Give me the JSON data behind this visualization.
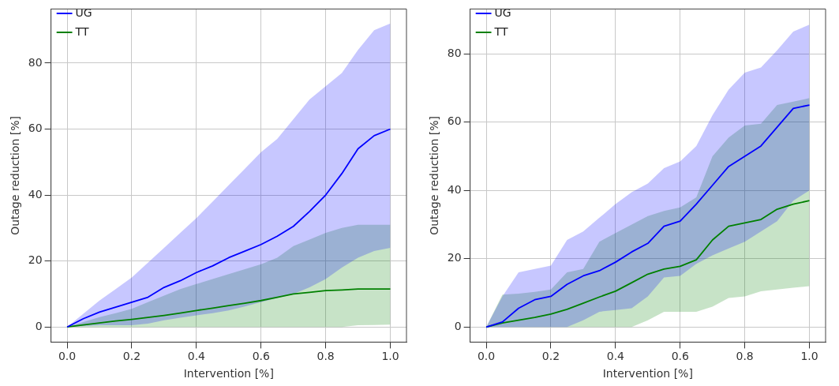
{
  "chart_data": [
    {
      "type": "line",
      "xlabel": "Intervention [%]",
      "ylabel": "Outage reduction [%]",
      "x": [
        0,
        0.05,
        0.1,
        0.15,
        0.2,
        0.25,
        0.3,
        0.35,
        0.4,
        0.45,
        0.5,
        0.55,
        0.6,
        0.65,
        0.7,
        0.75,
        0.8,
        0.85,
        0.9,
        0.95,
        1.0
      ],
      "series": [
        {
          "name": "UG",
          "color": "#0000ff",
          "values": [
            0,
            2.5,
            4.5,
            6,
            7.5,
            9,
            12,
            14,
            16.5,
            18.5,
            21,
            23,
            25,
            27.5,
            30.5,
            35,
            40,
            46.5,
            54,
            58,
            60
          ],
          "lower": [
            0,
            0.3,
            0.5,
            0.5,
            0.5,
            1,
            2,
            2.8,
            3.5,
            4.2,
            5,
            6.2,
            7.5,
            8.8,
            10,
            12,
            14.5,
            18,
            21,
            23,
            24
          ],
          "upper": [
            0,
            4,
            8,
            11.5,
            15,
            19.5,
            24,
            28.5,
            33,
            38,
            43,
            48,
            53,
            57,
            63,
            69,
            73,
            77,
            84,
            90,
            92
          ]
        },
        {
          "name": "TT",
          "color": "#008000",
          "values": [
            0,
            0.6,
            1.2,
            1.8,
            2.3,
            2.9,
            3.5,
            4.2,
            5,
            5.7,
            6.5,
            7.2,
            8,
            9,
            10,
            10.5,
            11,
            11.2,
            11.5,
            11.5,
            11.5
          ],
          "lower": [
            0,
            0,
            0,
            0,
            0,
            0,
            0,
            0,
            0,
            0,
            0,
            0,
            0,
            0,
            0,
            0,
            0,
            0,
            0.5,
            0.6,
            0.7
          ],
          "upper": [
            0,
            1.5,
            3,
            4.2,
            5.5,
            7.5,
            9.5,
            11.5,
            13,
            14.5,
            16,
            17.5,
            19,
            21,
            24.5,
            26.5,
            28.5,
            30,
            31,
            31,
            31
          ]
        }
      ],
      "xlim": [
        -0.05,
        1.05
      ],
      "ylim": [
        -4.6,
        96.4
      ],
      "xticks": [
        {
          "value": 0,
          "label": "0.0"
        },
        {
          "value": 0.2,
          "label": "0.2"
        },
        {
          "value": 0.4,
          "label": "0.4"
        },
        {
          "value": 0.6,
          "label": "0.6"
        },
        {
          "value": 0.8,
          "label": "0.8"
        },
        {
          "value": 1,
          "label": "1.0"
        }
      ],
      "yticks": [
        0,
        20,
        40,
        60,
        80
      ],
      "grid": true,
      "legend": "top left"
    },
    {
      "type": "line",
      "xlabel": "Intervention [%]",
      "ylabel": "Outage reduction [%]",
      "x": [
        0,
        0.05,
        0.1,
        0.15,
        0.2,
        0.25,
        0.3,
        0.35,
        0.4,
        0.45,
        0.5,
        0.55,
        0.6,
        0.65,
        0.7,
        0.75,
        0.8,
        0.85,
        0.9,
        0.95,
        1.0
      ],
      "series": [
        {
          "name": "UG",
          "color": "#0000ff",
          "values": [
            0,
            1.5,
            5.5,
            8,
            9,
            12.5,
            15,
            16.5,
            19,
            22,
            24.5,
            29.5,
            31,
            36,
            41.5,
            47,
            50,
            53,
            58.5,
            64,
            65
          ],
          "lower": [
            0,
            0,
            0,
            0,
            0,
            0,
            2,
            4.5,
            5,
            5.5,
            9,
            14.5,
            15,
            18.5,
            21,
            23,
            25,
            28,
            31,
            37,
            40
          ],
          "upper": [
            0,
            9,
            16,
            17,
            18,
            25.5,
            28,
            32,
            36,
            39.5,
            42,
            46.5,
            48.5,
            53,
            62,
            69.5,
            74.5,
            76,
            81,
            86.5,
            88.5
          ]
        },
        {
          "name": "TT",
          "color": "#008000",
          "values": [
            0,
            1.2,
            2,
            2.8,
            3.8,
            5.2,
            7,
            8.8,
            10.5,
            13,
            15.5,
            17,
            17.8,
            19.7,
            25.5,
            29.5,
            30.5,
            31.5,
            34.5,
            36,
            37
          ],
          "lower": [
            0,
            0,
            0,
            0,
            0,
            0,
            0,
            0,
            0,
            0,
            2,
            4.5,
            4.5,
            4.5,
            6,
            8.5,
            9,
            10.5,
            11,
            11.5,
            12
          ],
          "upper": [
            0,
            9.5,
            9.8,
            10.3,
            11,
            16,
            17,
            25,
            27.5,
            30,
            32.5,
            34,
            35,
            38,
            50,
            55.5,
            59,
            59.5,
            65,
            66,
            67
          ]
        }
      ],
      "xlim": [
        -0.05,
        1.05
      ],
      "ylim": [
        -4.4,
        93.1
      ],
      "xticks": [
        {
          "value": 0,
          "label": "0.0"
        },
        {
          "value": 0.2,
          "label": "0.2"
        },
        {
          "value": 0.4,
          "label": "0.4"
        },
        {
          "value": 0.6,
          "label": "0.6"
        },
        {
          "value": 0.8,
          "label": "0.8"
        },
        {
          "value": 1,
          "label": "1.0"
        }
      ],
      "yticks": [
        0,
        20,
        40,
        60,
        80
      ],
      "grid": true,
      "legend": "top left"
    }
  ]
}
